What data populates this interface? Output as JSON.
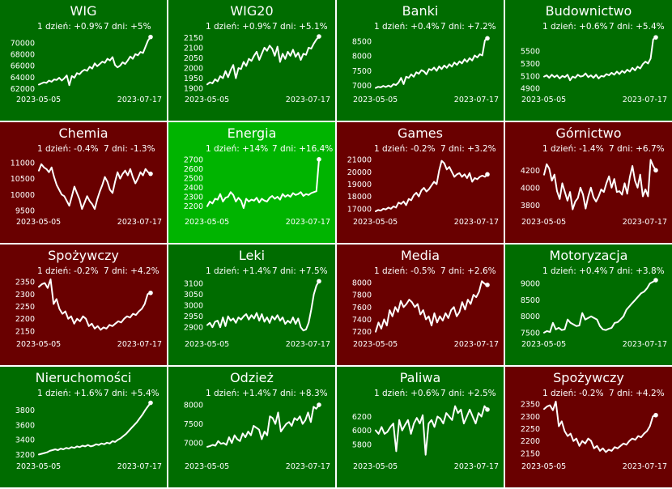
{
  "colors": {
    "up": "#006c00",
    "down": "#690000",
    "strong_up": "#00b400",
    "line": "#ffffff"
  },
  "chart_data": [
    {
      "type": "line",
      "title": "WIG",
      "day1": "1 dzień: +0.9%",
      "day7": "7 dni: +5%",
      "bg": "up",
      "x_start": "2023-05-05",
      "x_end": "2023-07-17",
      "yticks": [
        62000,
        64000,
        66000,
        68000,
        70000
      ],
      "ylim": [
        61500,
        71800
      ],
      "values": [
        62700,
        62900,
        63100,
        63000,
        63400,
        63200,
        63600,
        63500,
        63900,
        63400,
        63800,
        64300,
        62600,
        64200,
        63900,
        64700,
        64500,
        65000,
        65300,
        65100,
        65800,
        65500,
        66400,
        65900,
        66300,
        66700,
        66500,
        67200,
        66900,
        67500,
        66100,
        65700,
        66000,
        66600,
        66300,
        66900,
        67600,
        67200,
        68000,
        67800,
        68400,
        68200,
        69300,
        70400,
        71000
      ]
    },
    {
      "type": "line",
      "title": "WIG20",
      "day1": "1 dzień: +0.9%",
      "day7": "7 dni: +5.1%",
      "bg": "up",
      "x_start": "2023-05-05",
      "x_end": "2023-07-17",
      "yticks": [
        1900,
        1950,
        2000,
        2050,
        2100,
        2150
      ],
      "ylim": [
        1885,
        2175
      ],
      "values": [
        1920,
        1930,
        1925,
        1945,
        1935,
        1960,
        1950,
        1985,
        1955,
        1990,
        2015,
        1950,
        2000,
        1995,
        2030,
        2010,
        2045,
        2035,
        2060,
        2080,
        2040,
        2070,
        2100,
        2085,
        2110,
        2095,
        2060,
        2105,
        2030,
        2070,
        2045,
        2080,
        2060,
        2090,
        2055,
        2075,
        2040,
        2070,
        2065,
        2100,
        2095,
        2120,
        2140,
        2155
      ]
    },
    {
      "type": "line",
      "title": "Banki",
      "day1": "1 dzień: +0.4%",
      "day7": "7 dni: +7.2%",
      "bg": "up",
      "x_start": "2023-05-05",
      "x_end": "2023-07-17",
      "yticks": [
        7000,
        7500,
        8000,
        8500
      ],
      "ylim": [
        6800,
        8800
      ],
      "values": [
        6920,
        6960,
        6940,
        6990,
        6950,
        7000,
        6960,
        7050,
        7020,
        7100,
        7260,
        7050,
        7300,
        7260,
        7380,
        7300,
        7450,
        7400,
        7520,
        7480,
        7380,
        7560,
        7520,
        7610,
        7500,
        7650,
        7560,
        7680,
        7600,
        7720,
        7640,
        7780,
        7700,
        7820,
        7750,
        7890,
        7800,
        7930,
        7850,
        8020,
        7950,
        8060,
        8020,
        8530,
        8600
      ]
    },
    {
      "type": "line",
      "title": "Budownictwo",
      "day1": "1 dzień: +0.6%",
      "day7": "7 dni: +5.4%",
      "bg": "up",
      "x_start": "2023-05-05",
      "x_end": "2023-07-17",
      "yticks": [
        4900,
        5100,
        5300,
        5500
      ],
      "ylim": [
        4850,
        5800
      ],
      "values": [
        5090,
        5110,
        5070,
        5120,
        5080,
        5110,
        5060,
        5100,
        5080,
        5120,
        5030,
        5090,
        5070,
        5120,
        5090,
        5100,
        5140,
        5080,
        5110,
        5070,
        5120,
        5060,
        5100,
        5090,
        5130,
        5110,
        5150,
        5120,
        5170,
        5130,
        5180,
        5150,
        5200,
        5170,
        5230,
        5190,
        5250,
        5220,
        5290,
        5330,
        5300,
        5380,
        5690,
        5720
      ]
    },
    {
      "type": "line",
      "title": "Chemia",
      "day1": "1 dzień: -0.4%",
      "day7": "7 dni: -1.3%",
      "bg": "down",
      "x_start": "2023-05-05",
      "x_end": "2023-07-17",
      "yticks": [
        9500,
        10000,
        10500,
        11000
      ],
      "ylim": [
        9400,
        11250
      ],
      "values": [
        10750,
        10950,
        10850,
        10800,
        10700,
        10850,
        10550,
        10300,
        10150,
        10000,
        9950,
        9800,
        9650,
        9950,
        10250,
        10050,
        9850,
        9550,
        9750,
        9950,
        9800,
        9700,
        9550,
        9850,
        10100,
        10300,
        10550,
        10400,
        10150,
        10050,
        10400,
        10700,
        10500,
        10650,
        10750,
        10600,
        10800,
        10550,
        10350,
        10500,
        10700,
        10600,
        10800,
        10700,
        10650
      ]
    },
    {
      "type": "line",
      "title": "Energia",
      "day1": "1 dzień: +14%",
      "day7": "7 dni: +16.4%",
      "bg": "strong_up",
      "x_start": "2023-05-05",
      "x_end": "2023-07-17",
      "yticks": [
        2200,
        2300,
        2400,
        2500,
        2600,
        2700
      ],
      "ylim": [
        2120,
        2750
      ],
      "values": [
        2200,
        2250,
        2230,
        2280,
        2270,
        2330,
        2250,
        2290,
        2300,
        2350,
        2320,
        2250,
        2290,
        2260,
        2180,
        2280,
        2250,
        2270,
        2260,
        2290,
        2240,
        2280,
        2260,
        2250,
        2290,
        2310,
        2280,
        2300,
        2270,
        2330,
        2300,
        2320,
        2300,
        2340,
        2320,
        2330,
        2350,
        2310,
        2330,
        2320,
        2340,
        2350,
        2360,
        2700
      ]
    },
    {
      "type": "line",
      "title": "Games",
      "day1": "1 dzień: -0.2%",
      "day7": "7 dni: +3.2%",
      "bg": "down",
      "x_start": "2023-05-05",
      "x_end": "2023-07-17",
      "yticks": [
        17000,
        18000,
        19000,
        20000,
        21000
      ],
      "ylim": [
        16600,
        21400
      ],
      "values": [
        16800,
        16900,
        16850,
        17000,
        16950,
        17100,
        17000,
        17200,
        17100,
        17500,
        17400,
        17600,
        17300,
        17800,
        17700,
        18100,
        18300,
        18000,
        18500,
        18700,
        18400,
        18600,
        18900,
        19200,
        19000,
        20100,
        20900,
        20700,
        20200,
        20400,
        20000,
        19600,
        19800,
        19900,
        19600,
        19800,
        19500,
        19900,
        19200,
        19500,
        19400,
        19600,
        19700,
        19600,
        19800
      ]
    },
    {
      "type": "line",
      "title": "Górnictwo",
      "day1": "1 dzień: -1.4%",
      "day7": "7 dni: +6.7%",
      "bg": "down",
      "x_start": "2023-05-05",
      "x_end": "2023-07-17",
      "yticks": [
        3800,
        4000,
        4200
      ],
      "ylim": [
        3700,
        4380
      ],
      "values": [
        4150,
        4270,
        4220,
        4080,
        4150,
        3960,
        3870,
        4050,
        3950,
        3850,
        3950,
        3750,
        3840,
        3880,
        4000,
        3920,
        3760,
        3900,
        4000,
        3890,
        3840,
        3900,
        3980,
        3950,
        4050,
        4130,
        4000,
        4100,
        3950,
        3960,
        3920,
        4050,
        3930,
        4120,
        4250,
        4080,
        4000,
        4150,
        3900,
        3980,
        3900,
        4320,
        4250,
        4200
      ]
    },
    {
      "type": "line",
      "title": "Spożywczy",
      "day1": "1 dzień: -0.2%",
      "day7": "7 dni: +4.2%",
      "bg": "down",
      "x_start": "2023-05-05",
      "x_end": "2023-07-17",
      "yticks": [
        2150,
        2200,
        2250,
        2300,
        2350
      ],
      "ylim": [
        2130,
        2370
      ],
      "values": [
        2330,
        2340,
        2345,
        2325,
        2360,
        2260,
        2280,
        2240,
        2220,
        2230,
        2200,
        2210,
        2180,
        2200,
        2190,
        2210,
        2200,
        2170,
        2180,
        2160,
        2170,
        2155,
        2165,
        2160,
        2175,
        2170,
        2180,
        2190,
        2185,
        2200,
        2210,
        2205,
        2220,
        2215,
        2230,
        2240,
        2260,
        2300,
        2305
      ]
    },
    {
      "type": "line",
      "title": "Leki",
      "day1": "1 dzień: +1.4%",
      "day7": "7 dni: +7.5%",
      "bg": "up",
      "x_start": "2023-05-05",
      "x_end": "2023-07-17",
      "yticks": [
        2900,
        2950,
        3000,
        3050,
        3100
      ],
      "ylim": [
        2860,
        3130
      ],
      "values": [
        2910,
        2920,
        2900,
        2925,
        2930,
        2900,
        2945,
        2905,
        2950,
        2930,
        2940,
        2920,
        2945,
        2935,
        2950,
        2960,
        2935,
        2955,
        2940,
        2965,
        2930,
        2960,
        2925,
        2945,
        2920,
        2950,
        2935,
        2955,
        2930,
        2945,
        2915,
        2930,
        2920,
        2945,
        2915,
        2940,
        2900,
        2885,
        2890,
        2920,
        2980,
        3050,
        3090,
        3110
      ]
    },
    {
      "type": "line",
      "title": "Media",
      "day1": "1 dzień: -0.5%",
      "day7": "7 dni: +2.6%",
      "bg": "down",
      "x_start": "2023-05-05",
      "x_end": "2023-07-17",
      "yticks": [
        7200,
        7400,
        7600,
        7800,
        8000
      ],
      "ylim": [
        7130,
        8090
      ],
      "values": [
        7200,
        7350,
        7250,
        7400,
        7300,
        7550,
        7450,
        7600,
        7520,
        7700,
        7600,
        7650,
        7720,
        7680,
        7600,
        7650,
        7480,
        7550,
        7400,
        7450,
        7300,
        7500,
        7350,
        7450,
        7380,
        7500,
        7420,
        7550,
        7600,
        7450,
        7520,
        7680,
        7560,
        7720,
        7650,
        7800,
        7760,
        7850,
        8020,
        7980,
        7960
      ]
    },
    {
      "type": "line",
      "title": "Motoryzacja",
      "day1": "1 dzień: +0.4%",
      "day7": "7 dni: +3.8%",
      "bg": "up",
      "x_start": "2023-05-05",
      "x_end": "2023-07-17",
      "yticks": [
        7500,
        8000,
        8500,
        9000
      ],
      "ylim": [
        7400,
        9200
      ],
      "values": [
        7500,
        7550,
        7520,
        7800,
        7600,
        7650,
        7580,
        7600,
        7900,
        7800,
        7750,
        7700,
        7720,
        8100,
        7900,
        7950,
        8000,
        7950,
        7900,
        7700,
        7600,
        7580,
        7620,
        7650,
        7800,
        7820,
        7900,
        8000,
        8200,
        8300,
        8400,
        8500,
        8600,
        8700,
        8750,
        8850,
        9000,
        9050,
        9100
      ]
    },
    {
      "type": "line",
      "title": "Nieruchomości",
      "day1": "1 dzień: +1.6%",
      "day7": "7 dni: +5.4%",
      "bg": "up",
      "x_start": "2023-05-05",
      "x_end": "2023-07-17",
      "yticks": [
        3200,
        3400,
        3600,
        3800
      ],
      "ylim": [
        3150,
        3950
      ],
      "values": [
        3200,
        3210,
        3220,
        3230,
        3250,
        3260,
        3270,
        3260,
        3280,
        3270,
        3290,
        3280,
        3300,
        3290,
        3310,
        3300,
        3320,
        3310,
        3330,
        3310,
        3320,
        3340,
        3330,
        3350,
        3340,
        3360,
        3350,
        3380,
        3370,
        3400,
        3420,
        3450,
        3480,
        3520,
        3560,
        3600,
        3640,
        3690,
        3740,
        3800,
        3850,
        3900
      ]
    },
    {
      "type": "line",
      "title": "Odzież",
      "day1": "1 dzień: +1.4%",
      "day7": "7 dni: +8.3%",
      "bg": "up",
      "x_start": "2023-05-05",
      "x_end": "2023-07-17",
      "yticks": [
        7000,
        7500,
        8000
      ],
      "ylim": [
        6600,
        8150
      ],
      "values": [
        6900,
        6920,
        6950,
        6930,
        7050,
        6980,
        7000,
        6950,
        7150,
        7000,
        7200,
        7100,
        7050,
        7250,
        7150,
        7300,
        7200,
        7450,
        7400,
        7350,
        7100,
        7300,
        7200,
        7700,
        7650,
        7500,
        7800,
        7300,
        7400,
        7500,
        7550,
        7450,
        7650,
        7600,
        7700,
        7500,
        7600,
        7800,
        7550,
        7950,
        7900,
        8000
      ]
    },
    {
      "type": "line",
      "title": "Paliwa",
      "day1": "1 dzień: +0.6%",
      "day7": "7 dni: +2.5%",
      "bg": "up",
      "x_start": "2023-05-05",
      "x_end": "2023-07-17",
      "yticks": [
        5800,
        6000,
        6200
      ],
      "ylim": [
        5600,
        6450
      ],
      "values": [
        6000,
        5950,
        6050,
        5950,
        5980,
        6050,
        6100,
        5700,
        6150,
        6000,
        6080,
        6150,
        5950,
        6100,
        6180,
        6100,
        6220,
        5650,
        6100,
        6150,
        6050,
        6200,
        6170,
        6100,
        6250,
        6200,
        6150,
        6350,
        6250,
        6300,
        6100,
        6200,
        6300,
        6200,
        6100,
        6250,
        6200,
        6350,
        6300
      ]
    },
    {
      "type": "line",
      "title": "Spożywczy",
      "day1": "1 dzień: -0.2%",
      "day7": "7 dni: +4.2%",
      "bg": "down",
      "x_start": "2023-05-05",
      "x_end": "2023-07-17",
      "yticks": [
        2150,
        2200,
        2250,
        2300,
        2350
      ],
      "ylim": [
        2130,
        2370
      ],
      "values": [
        2330,
        2340,
        2345,
        2325,
        2360,
        2260,
        2280,
        2240,
        2220,
        2230,
        2200,
        2210,
        2180,
        2200,
        2190,
        2210,
        2200,
        2170,
        2180,
        2160,
        2170,
        2155,
        2165,
        2160,
        2175,
        2170,
        2180,
        2190,
        2185,
        2200,
        2210,
        2205,
        2220,
        2215,
        2230,
        2240,
        2260,
        2300,
        2305
      ]
    }
  ]
}
